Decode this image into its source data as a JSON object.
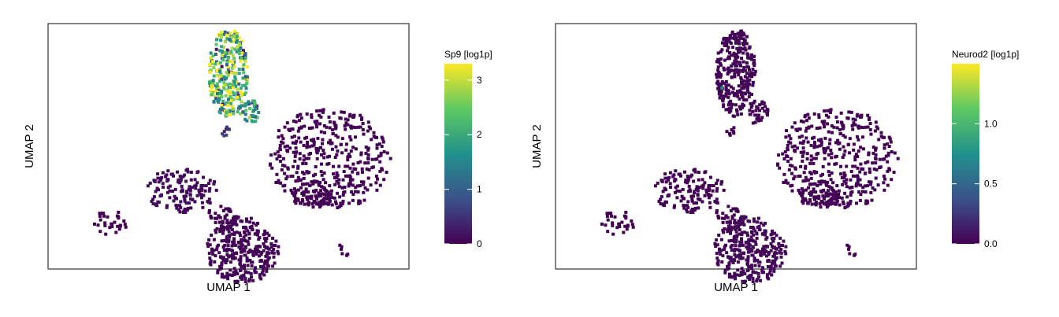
{
  "chart_data": [
    {
      "type": "scatter",
      "title": "",
      "xlabel": "UMAP 1",
      "ylabel": "UMAP 2",
      "colorbar": {
        "label": "Sp9 [log1p]",
        "min": 0,
        "max": 3.3,
        "ticks": [
          0,
          1,
          2,
          3
        ],
        "tick_labels": [
          "0",
          "1",
          "2",
          "3"
        ],
        "colormap": "viridis"
      },
      "clusters": [
        {
          "cx": 0.17,
          "cy": 0.81,
          "rx": 0.05,
          "ry": 0.05,
          "n": 30,
          "value": 0
        },
        {
          "cx": 0.37,
          "cy": 0.68,
          "rx": 0.1,
          "ry": 0.09,
          "n": 140,
          "value": 0.1
        },
        {
          "cx": 0.48,
          "cy": 0.79,
          "rx": 0.04,
          "ry": 0.05,
          "n": 40,
          "value": 0
        },
        {
          "cx": 0.54,
          "cy": 0.92,
          "rx": 0.1,
          "ry": 0.14,
          "n": 320,
          "value": 0.05
        },
        {
          "cx": 0.78,
          "cy": 0.55,
          "rx": 0.17,
          "ry": 0.21,
          "n": 420,
          "value": 0.02
        },
        {
          "cx": 0.73,
          "cy": 0.7,
          "rx": 0.06,
          "ry": 0.05,
          "n": 60,
          "value": 0.02
        },
        {
          "cx": 0.82,
          "cy": 0.92,
          "rx": 0.02,
          "ry": 0.03,
          "n": 6,
          "value": 0
        },
        {
          "cx": 0.5,
          "cy": 0.2,
          "rx": 0.055,
          "ry": 0.18,
          "n": 300,
          "value": 2.4
        },
        {
          "cx": 0.56,
          "cy": 0.36,
          "rx": 0.03,
          "ry": 0.05,
          "n": 40,
          "value": 1.6
        },
        {
          "cx": 0.49,
          "cy": 0.44,
          "rx": 0.02,
          "ry": 0.02,
          "n": 8,
          "value": 0.5
        }
      ]
    },
    {
      "type": "scatter",
      "title": "",
      "xlabel": "UMAP 1",
      "ylabel": "UMAP 2",
      "colorbar": {
        "label": "Neurod2 [log1p]",
        "min": 0,
        "max": 1.5,
        "ticks": [
          0,
          0.5,
          1.0
        ],
        "tick_labels": [
          "0.0",
          "0.5",
          "1.0"
        ],
        "colormap": "viridis"
      },
      "clusters": [
        {
          "cx": 0.17,
          "cy": 0.81,
          "rx": 0.05,
          "ry": 0.05,
          "n": 30,
          "value": 0
        },
        {
          "cx": 0.37,
          "cy": 0.68,
          "rx": 0.1,
          "ry": 0.09,
          "n": 140,
          "value": 0.01
        },
        {
          "cx": 0.48,
          "cy": 0.79,
          "rx": 0.04,
          "ry": 0.05,
          "n": 40,
          "value": 0
        },
        {
          "cx": 0.54,
          "cy": 0.92,
          "rx": 0.1,
          "ry": 0.14,
          "n": 320,
          "value": 0.03
        },
        {
          "cx": 0.78,
          "cy": 0.55,
          "rx": 0.17,
          "ry": 0.21,
          "n": 420,
          "value": 0.01
        },
        {
          "cx": 0.73,
          "cy": 0.7,
          "rx": 0.06,
          "ry": 0.05,
          "n": 60,
          "value": 0.01
        },
        {
          "cx": 0.82,
          "cy": 0.92,
          "rx": 0.02,
          "ry": 0.03,
          "n": 6,
          "value": 0
        },
        {
          "cx": 0.5,
          "cy": 0.2,
          "rx": 0.055,
          "ry": 0.18,
          "n": 300,
          "value": 0.02
        },
        {
          "cx": 0.56,
          "cy": 0.36,
          "rx": 0.03,
          "ry": 0.05,
          "n": 40,
          "value": 0.02
        },
        {
          "cx": 0.49,
          "cy": 0.44,
          "rx": 0.02,
          "ry": 0.02,
          "n": 8,
          "value": 0
        },
        {
          "cx": 0.46,
          "cy": 0.26,
          "rx": 0.005,
          "ry": 0.005,
          "n": 1,
          "value": 0.8
        }
      ]
    }
  ]
}
